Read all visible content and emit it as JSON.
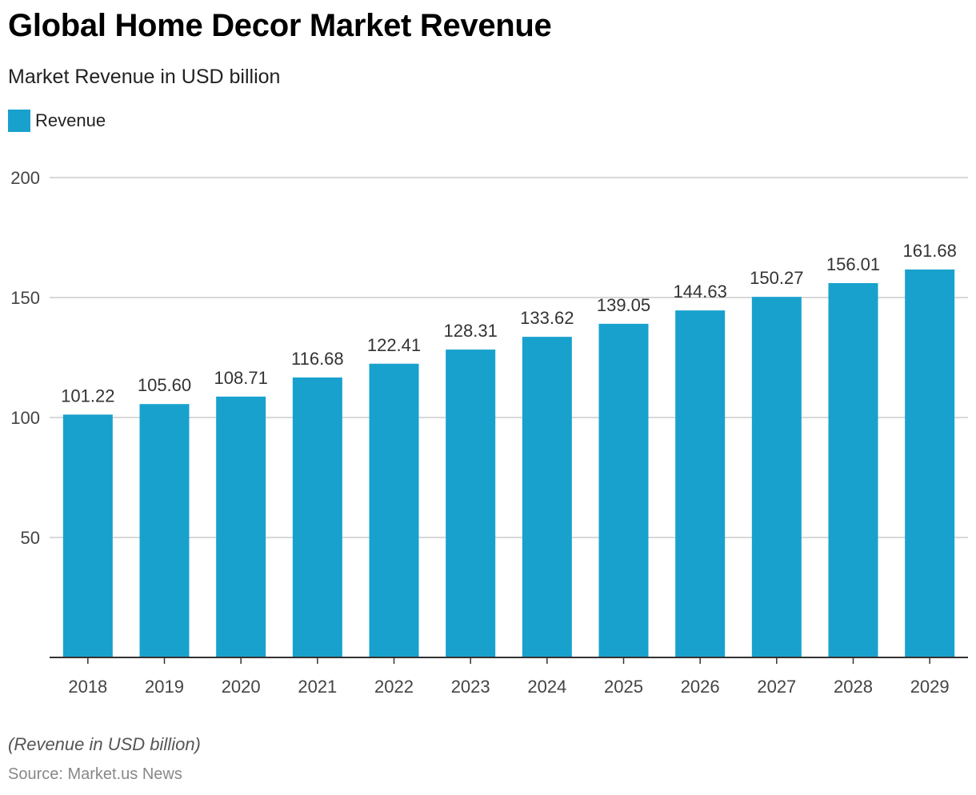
{
  "header": {
    "title": "Global Home Decor Market Revenue",
    "subtitle": "Market Revenue in USD billion"
  },
  "footer": {
    "note": "(Revenue in USD billion)",
    "source": "Source: Market.us News"
  },
  "colors": {
    "bar": "#19a1cd",
    "grid": "#cccccc",
    "axis": "#333333",
    "tick_text": "#444444",
    "label_text": "#333333"
  },
  "chart_data": {
    "type": "bar",
    "title": "Global Home Decor Market Revenue",
    "subtitle": "Market Revenue in USD billion",
    "xlabel": "",
    "ylabel": "",
    "categories": [
      "2018",
      "2019",
      "2020",
      "2021",
      "2022",
      "2023",
      "2024",
      "2025",
      "2026",
      "2027",
      "2028",
      "2029"
    ],
    "series": [
      {
        "name": "Revenue",
        "values": [
          101.22,
          105.6,
          108.71,
          116.68,
          122.41,
          128.31,
          133.62,
          139.05,
          144.63,
          150.27,
          156.01,
          161.68
        ],
        "labels": [
          "101.22",
          "105.60",
          "108.71",
          "116.68",
          "122.41",
          "128.31",
          "133.62",
          "139.05",
          "144.63",
          "150.27",
          "156.01",
          "161.68"
        ]
      }
    ],
    "ylim": [
      0,
      200
    ],
    "yticks": [
      50,
      100,
      150,
      200
    ],
    "ytick_labels": [
      "50",
      "100",
      "150",
      "200"
    ],
    "grid": true,
    "legend": "top-left"
  }
}
